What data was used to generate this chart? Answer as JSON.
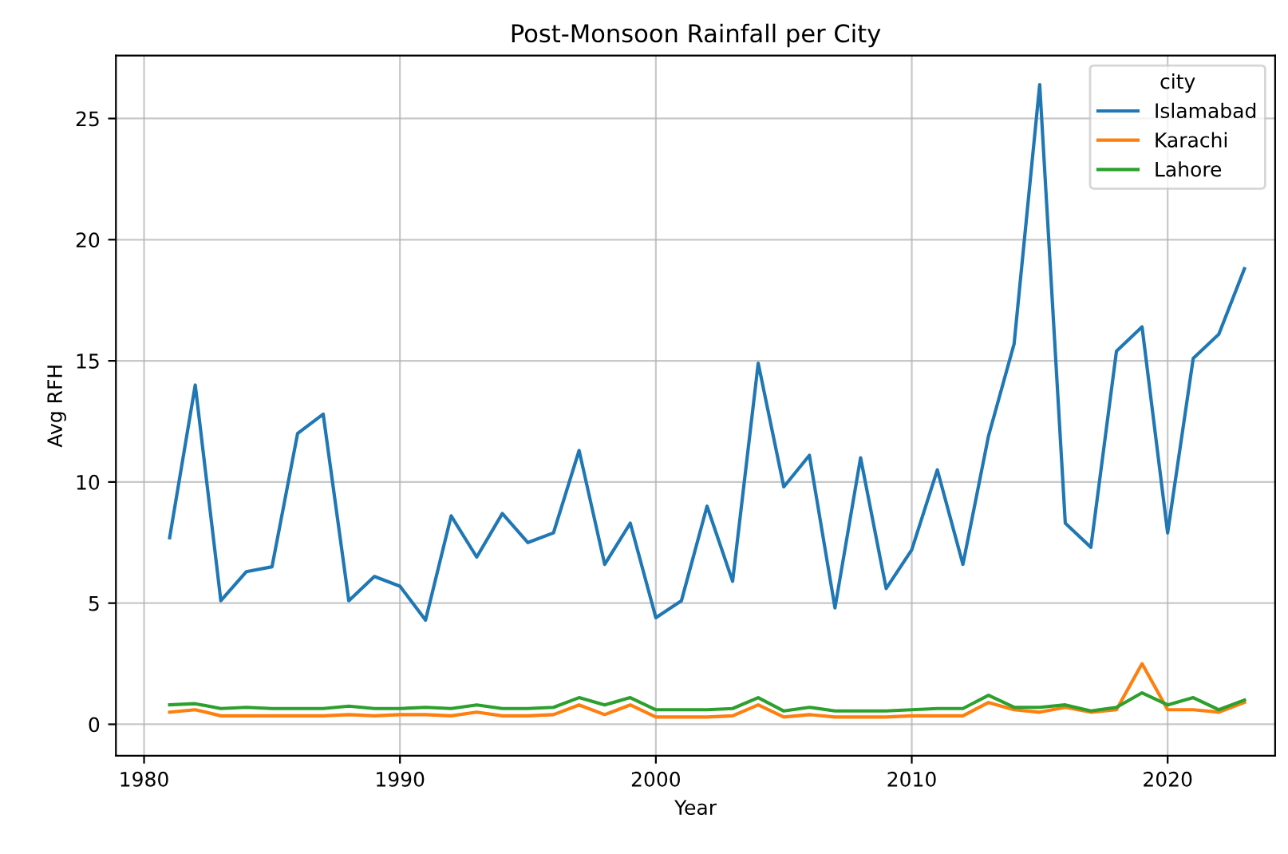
{
  "chart_data": {
    "type": "line",
    "title": "Post-Monsoon Rainfall per City",
    "xlabel": "Year",
    "ylabel": "Avg RFH",
    "legend_title": "city",
    "x": [
      1981,
      1982,
      1983,
      1984,
      1985,
      1986,
      1987,
      1988,
      1989,
      1990,
      1991,
      1992,
      1993,
      1994,
      1995,
      1996,
      1997,
      1998,
      1999,
      2000,
      2001,
      2002,
      2003,
      2004,
      2005,
      2006,
      2007,
      2008,
      2009,
      2010,
      2011,
      2012,
      2013,
      2014,
      2015,
      2016,
      2017,
      2018,
      2019,
      2020,
      2021,
      2022,
      2023
    ],
    "series": [
      {
        "name": "Islamabad",
        "color": "#1f77b4",
        "values": [
          7.7,
          14.0,
          5.1,
          6.3,
          6.5,
          12.0,
          12.8,
          5.1,
          6.1,
          5.7,
          4.3,
          8.6,
          6.9,
          8.7,
          7.5,
          7.9,
          11.3,
          6.6,
          8.3,
          4.4,
          5.1,
          9.0,
          5.9,
          14.9,
          9.8,
          11.1,
          4.8,
          11.0,
          5.6,
          7.2,
          10.5,
          6.6,
          11.9,
          15.7,
          26.4,
          8.3,
          7.3,
          15.4,
          16.4,
          7.9,
          15.1,
          16.1,
          18.8
        ]
      },
      {
        "name": "Karachi",
        "color": "#ff7f0e",
        "values": [
          0.5,
          0.6,
          0.35,
          0.35,
          0.35,
          0.35,
          0.35,
          0.4,
          0.35,
          0.4,
          0.4,
          0.35,
          0.5,
          0.35,
          0.35,
          0.4,
          0.8,
          0.4,
          0.8,
          0.3,
          0.3,
          0.3,
          0.35,
          0.8,
          0.3,
          0.4,
          0.3,
          0.3,
          0.3,
          0.35,
          0.35,
          0.35,
          0.9,
          0.6,
          0.5,
          0.7,
          0.5,
          0.6,
          2.5,
          0.6,
          0.6,
          0.5,
          0.9
        ]
      },
      {
        "name": "Lahore",
        "color": "#2ca02c",
        "values": [
          0.8,
          0.85,
          0.65,
          0.7,
          0.65,
          0.65,
          0.65,
          0.75,
          0.65,
          0.65,
          0.7,
          0.65,
          0.8,
          0.65,
          0.65,
          0.7,
          1.1,
          0.8,
          1.1,
          0.6,
          0.6,
          0.6,
          0.65,
          1.1,
          0.55,
          0.7,
          0.55,
          0.55,
          0.55,
          0.6,
          0.65,
          0.65,
          1.2,
          0.7,
          0.7,
          0.8,
          0.55,
          0.7,
          1.3,
          0.8,
          1.1,
          0.6,
          1.0
        ]
      }
    ],
    "xlim": [
      1978.9,
      2024.2
    ],
    "ylim": [
      -1.3,
      27.6
    ],
    "xticks": [
      1980,
      1990,
      2000,
      2010,
      2020
    ],
    "yticks": [
      0,
      5,
      10,
      15,
      20,
      25
    ],
    "grid": true,
    "legend": "top right",
    "marker": "none",
    "line_style": "solid"
  }
}
